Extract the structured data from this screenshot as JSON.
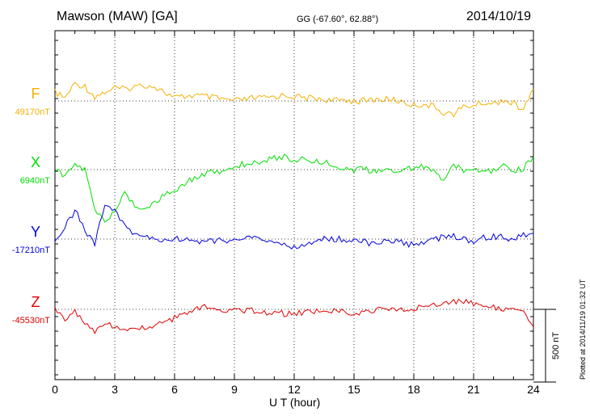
{
  "header": {
    "station": "Mawson (MAW)  [GA]",
    "coords": "GG (-67.60°,  62.88°)",
    "date": "2014/10/19"
  },
  "footer": {
    "plotted": "Plotted at 2014/11/19 01:32 UT"
  },
  "chart_data": {
    "type": "line",
    "xlabel": "U T (hour)",
    "xlim": [
      0,
      24
    ],
    "x_ticks": [
      "0",
      "3",
      "6",
      "9",
      "12",
      "15",
      "18",
      "21",
      "24"
    ],
    "scale_bar": {
      "label": "500 nT",
      "value_nT": 500
    },
    "x": [
      0,
      0.5,
      1,
      1.5,
      2,
      2.5,
      3,
      3.5,
      4,
      4.5,
      5,
      5.5,
      6,
      6.5,
      7,
      7.5,
      8,
      8.5,
      9,
      9.5,
      10,
      10.5,
      11,
      11.5,
      12,
      12.5,
      13,
      13.5,
      14,
      14.5,
      15,
      15.5,
      16,
      16.5,
      17,
      17.5,
      18,
      18.5,
      19,
      19.5,
      20,
      20.5,
      21,
      21.5,
      22,
      22.5,
      23,
      23.5,
      24
    ],
    "series": [
      {
        "name": "F",
        "baseline": "49170nT",
        "color": "#f5b000",
        "values": [
          60,
          20,
          120,
          100,
          30,
          60,
          90,
          80,
          100,
          110,
          100,
          60,
          20,
          30,
          40,
          30,
          20,
          10,
          0,
          10,
          20,
          20,
          30,
          40,
          30,
          20,
          20,
          10,
          0,
          10,
          0,
          0,
          10,
          10,
          10,
          -10,
          -30,
          -20,
          -40,
          -80,
          -90,
          -40,
          -30,
          -10,
          -20,
          10,
          -20,
          -60,
          80
        ]
      },
      {
        "name": "X",
        "baseline": "6940nT",
        "color": "#00e000",
        "values": [
          0,
          -50,
          30,
          0,
          -280,
          -350,
          -300,
          -150,
          -250,
          -270,
          -220,
          -180,
          -150,
          -100,
          -50,
          -30,
          -20,
          0,
          20,
          40,
          50,
          60,
          80,
          90,
          60,
          80,
          60,
          50,
          40,
          0,
          0,
          0,
          -10,
          -10,
          -10,
          0,
          20,
          20,
          -20,
          -60,
          20,
          0,
          0,
          10,
          -10,
          20,
          -10,
          10,
          90
        ]
      },
      {
        "name": "Y",
        "baseline": "-17210nT",
        "color": "#0000e0",
        "values": [
          0,
          80,
          200,
          60,
          -30,
          250,
          200,
          80,
          40,
          20,
          -10,
          0,
          0,
          0,
          -10,
          -20,
          -10,
          -10,
          0,
          0,
          10,
          -10,
          -20,
          -40,
          -60,
          -50,
          -20,
          0,
          0,
          0,
          -10,
          -20,
          -30,
          -20,
          -10,
          -30,
          -40,
          -30,
          0,
          10,
          20,
          0,
          -10,
          10,
          20,
          10,
          0,
          30,
          40
        ]
      },
      {
        "name": "Z",
        "baseline": "-45530nT",
        "color": "#e00000",
        "values": [
          0,
          -60,
          -20,
          -100,
          -150,
          -80,
          -120,
          -150,
          -140,
          -120,
          -110,
          -80,
          -60,
          -20,
          0,
          20,
          10,
          0,
          0,
          -10,
          -10,
          -20,
          -20,
          -30,
          -30,
          -20,
          -20,
          -10,
          -10,
          -20,
          -20,
          -20,
          -10,
          0,
          0,
          0,
          0,
          20,
          30,
          40,
          60,
          50,
          40,
          20,
          10,
          0,
          20,
          0,
          -120
        ]
      }
    ]
  }
}
